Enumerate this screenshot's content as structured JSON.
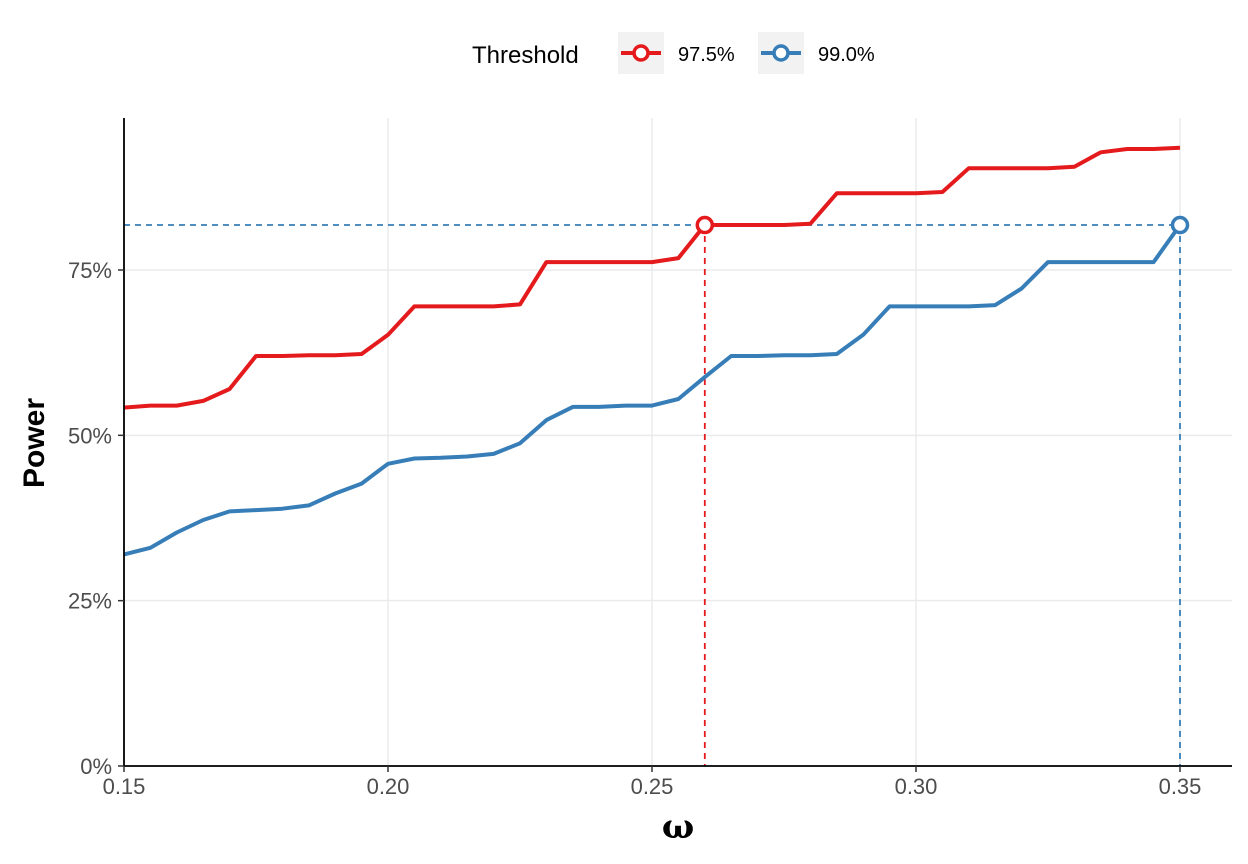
{
  "chart_data": {
    "type": "line",
    "xlabel": "ω",
    "ylabel": "Power",
    "xlim": [
      0.15,
      0.36
    ],
    "ylim": [
      0,
      0.98
    ],
    "x_ticks": [
      0.15,
      0.2,
      0.25,
      0.3,
      0.35
    ],
    "x_tick_labels": [
      "0.15",
      "0.20",
      "0.25",
      "0.30",
      "0.35"
    ],
    "y_ticks": [
      0,
      0.25,
      0.5,
      0.75
    ],
    "y_tick_labels": [
      "0%",
      "25%",
      "50%",
      "75%"
    ],
    "grid": true,
    "legend": {
      "title": "Threshold",
      "position": "top"
    },
    "series": [
      {
        "name": "97.5%",
        "color": "#e41a1c",
        "x": [
          0.15,
          0.155,
          0.16,
          0.165,
          0.17,
          0.175,
          0.18,
          0.185,
          0.19,
          0.195,
          0.2,
          0.205,
          0.21,
          0.215,
          0.22,
          0.225,
          0.23,
          0.235,
          0.24,
          0.245,
          0.25,
          0.255,
          0.26,
          0.265,
          0.27,
          0.275,
          0.28,
          0.285,
          0.29,
          0.295,
          0.3,
          0.305,
          0.31,
          0.315,
          0.32,
          0.325,
          0.33,
          0.335,
          0.34,
          0.345,
          0.35
        ],
        "y": [
          0.542,
          0.545,
          0.545,
          0.552,
          0.57,
          0.62,
          0.62,
          0.621,
          0.621,
          0.623,
          0.652,
          0.695,
          0.695,
          0.695,
          0.695,
          0.698,
          0.762,
          0.762,
          0.762,
          0.762,
          0.762,
          0.768,
          0.818,
          0.818,
          0.818,
          0.818,
          0.82,
          0.866,
          0.866,
          0.866,
          0.866,
          0.868,
          0.904,
          0.904,
          0.904,
          0.904,
          0.906,
          0.928,
          0.933,
          0.933,
          0.935
        ]
      },
      {
        "name": "99.0%",
        "color": "#377eb8",
        "x": [
          0.15,
          0.155,
          0.16,
          0.165,
          0.17,
          0.175,
          0.18,
          0.185,
          0.19,
          0.195,
          0.2,
          0.205,
          0.21,
          0.215,
          0.22,
          0.225,
          0.23,
          0.235,
          0.24,
          0.245,
          0.25,
          0.255,
          0.26,
          0.265,
          0.27,
          0.275,
          0.28,
          0.285,
          0.29,
          0.295,
          0.3,
          0.305,
          0.31,
          0.315,
          0.32,
          0.325,
          0.33,
          0.335,
          0.34,
          0.345,
          0.35
        ],
        "y": [
          0.32,
          0.33,
          0.353,
          0.372,
          0.385,
          0.387,
          0.389,
          0.394,
          0.412,
          0.427,
          0.457,
          0.465,
          0.466,
          0.468,
          0.472,
          0.488,
          0.523,
          0.543,
          0.543,
          0.545,
          0.545,
          0.555,
          0.588,
          0.62,
          0.62,
          0.621,
          0.621,
          0.623,
          0.652,
          0.695,
          0.695,
          0.695,
          0.695,
          0.697,
          0.722,
          0.762,
          0.762,
          0.762,
          0.762,
          0.762,
          0.818
        ]
      }
    ],
    "annotations": [
      {
        "series": "97.5%",
        "color": "#e41a1c",
        "x": 0.26,
        "y": 0.818,
        "style": "dashed-crosshair",
        "marker": "open-circle"
      },
      {
        "series": "99.0%",
        "color": "#377eb8",
        "x": 0.35,
        "y": 0.818,
        "style": "dashed-crosshair",
        "marker": "open-circle"
      }
    ]
  }
}
